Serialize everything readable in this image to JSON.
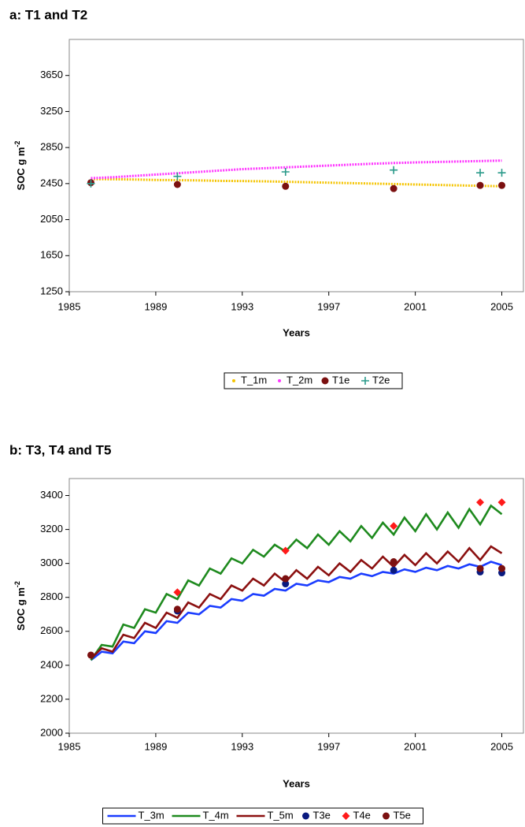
{
  "chart_data": [
    {
      "type": "line",
      "title": "a: T1 and T2",
      "x_label": "Years",
      "y_label": "SOC g m",
      "y_label_sup": "-2",
      "xlim": [
        1985,
        2006
      ],
      "xticks": [
        1985,
        1989,
        1993,
        1997,
        2001,
        2005
      ],
      "ylim": [
        1250,
        4050
      ],
      "yticks": [
        1250,
        1650,
        2050,
        2450,
        2850,
        3250,
        3650
      ],
      "grid": false,
      "series": [
        {
          "name": "T_1m",
          "color": "#f5c400",
          "style": "dots",
          "x": [
            1986,
            1987,
            1988,
            1989,
            1990,
            1991,
            1992,
            1993,
            1994,
            1995,
            1996,
            1997,
            1998,
            1999,
            2000,
            2001,
            2002,
            2003,
            2004,
            2005
          ],
          "values": [
            2500,
            2498,
            2495,
            2490,
            2488,
            2485,
            2480,
            2478,
            2475,
            2470,
            2465,
            2460,
            2455,
            2450,
            2445,
            2440,
            2435,
            2430,
            2425,
            2420
          ]
        },
        {
          "name": "T_2m",
          "color": "#ff33ff",
          "style": "dots",
          "x": [
            1986,
            1987,
            1988,
            1989,
            1990,
            1991,
            1992,
            1993,
            1994,
            1995,
            1996,
            1997,
            1998,
            1999,
            2000,
            2001,
            2002,
            2003,
            2004,
            2005
          ],
          "values": [
            2510,
            2520,
            2535,
            2550,
            2565,
            2580,
            2595,
            2610,
            2620,
            2630,
            2640,
            2650,
            2660,
            2670,
            2678,
            2685,
            2690,
            2695,
            2700,
            2705
          ]
        },
        {
          "name": "T1e",
          "color": "#7b1010",
          "style": "circle",
          "x": [
            1986,
            1990,
            1995,
            2000,
            2004,
            2005
          ],
          "values": [
            2460,
            2440,
            2420,
            2395,
            2430,
            2430
          ]
        },
        {
          "name": "T2e",
          "color": "#2a9a8a",
          "style": "plus",
          "x": [
            1986,
            1990,
            1995,
            2000,
            2004,
            2005
          ],
          "values": [
            2450,
            2530,
            2580,
            2600,
            2570,
            2570
          ]
        }
      ]
    },
    {
      "type": "line",
      "title": "b: T3, T4 and T5",
      "x_label": "Years",
      "y_label": "SOC g m",
      "y_label_sup": "-2",
      "xlim": [
        1985,
        2006
      ],
      "xticks": [
        1985,
        1989,
        1993,
        1997,
        2001,
        2005
      ],
      "ylim": [
        2000,
        3500
      ],
      "yticks": [
        2000,
        2200,
        2400,
        2600,
        2800,
        3000,
        3200,
        3400
      ],
      "grid": false,
      "series": [
        {
          "name": "T_3m",
          "color": "#1a3cff",
          "style": "line",
          "x": [
            1986,
            1986.5,
            1987,
            1987.5,
            1988,
            1988.5,
            1989,
            1989.5,
            1990,
            1990.5,
            1991,
            1991.5,
            1992,
            1992.5,
            1993,
            1993.5,
            1994,
            1994.5,
            1995,
            1995.5,
            1996,
            1996.5,
            1997,
            1997.5,
            1998,
            1998.5,
            1999,
            1999.5,
            2000,
            2000.5,
            2001,
            2001.5,
            2002,
            2002.5,
            2003,
            2003.5,
            2004,
            2004.5,
            2005
          ],
          "values": [
            2430,
            2480,
            2470,
            2540,
            2530,
            2600,
            2590,
            2660,
            2650,
            2710,
            2700,
            2750,
            2740,
            2790,
            2780,
            2820,
            2810,
            2850,
            2840,
            2880,
            2870,
            2900,
            2890,
            2920,
            2910,
            2940,
            2925,
            2950,
            2940,
            2965,
            2950,
            2975,
            2960,
            2985,
            2970,
            2995,
            2980,
            3010,
            2990
          ]
        },
        {
          "name": "T_4m",
          "color": "#1e8a1e",
          "style": "line",
          "x": [
            1986,
            1986.5,
            1987,
            1987.5,
            1988,
            1988.5,
            1989,
            1989.5,
            1990,
            1990.5,
            1991,
            1991.5,
            1992,
            1992.5,
            1993,
            1993.5,
            1994,
            1994.5,
            1995,
            1995.5,
            1996,
            1996.5,
            1997,
            1997.5,
            1998,
            1998.5,
            1999,
            1999.5,
            2000,
            2000.5,
            2001,
            2001.5,
            2002,
            2002.5,
            2003,
            2003.5,
            2004,
            2004.5,
            2005
          ],
          "values": [
            2430,
            2520,
            2510,
            2640,
            2620,
            2730,
            2710,
            2820,
            2790,
            2900,
            2870,
            2970,
            2940,
            3030,
            3000,
            3080,
            3040,
            3110,
            3070,
            3140,
            3090,
            3170,
            3110,
            3190,
            3130,
            3220,
            3150,
            3240,
            3170,
            3270,
            3190,
            3290,
            3200,
            3300,
            3210,
            3320,
            3230,
            3340,
            3290
          ]
        },
        {
          "name": "T_5m",
          "color": "#8b1010",
          "style": "line",
          "x": [
            1986,
            1986.5,
            1987,
            1987.5,
            1988,
            1988.5,
            1989,
            1989.5,
            1990,
            1990.5,
            1991,
            1991.5,
            1992,
            1992.5,
            1993,
            1993.5,
            1994,
            1994.5,
            1995,
            1995.5,
            1996,
            1996.5,
            1997,
            1997.5,
            1998,
            1998.5,
            1999,
            1999.5,
            2000,
            2000.5,
            2001,
            2001.5,
            2002,
            2002.5,
            2003,
            2003.5,
            2004,
            2004.5,
            2005
          ],
          "values": [
            2440,
            2500,
            2480,
            2580,
            2560,
            2650,
            2620,
            2710,
            2680,
            2770,
            2740,
            2820,
            2790,
            2870,
            2840,
            2910,
            2870,
            2940,
            2890,
            2960,
            2910,
            2980,
            2930,
            3000,
            2950,
            3020,
            2970,
            3040,
            2980,
            3050,
            2990,
            3060,
            3000,
            3070,
            3010,
            3090,
            3020,
            3100,
            3060
          ]
        },
        {
          "name": "T3e",
          "color": "#0a1a80",
          "style": "circle",
          "x": [
            1990,
            1995,
            2000,
            2004,
            2005
          ],
          "values": [
            2720,
            2880,
            2960,
            2950,
            2945
          ]
        },
        {
          "name": "T4e",
          "color": "#ff1a1a",
          "style": "diamond",
          "x": [
            1990,
            1995,
            2000,
            2004,
            2005
          ],
          "values": [
            2830,
            3075,
            3220,
            3360,
            3360
          ]
        },
        {
          "name": "T5e",
          "color": "#7b1010",
          "style": "circle",
          "x": [
            1986,
            1990,
            1995,
            2000,
            2004,
            2005
          ],
          "values": [
            2460,
            2730,
            2910,
            3010,
            2970,
            2970
          ]
        }
      ]
    }
  ]
}
